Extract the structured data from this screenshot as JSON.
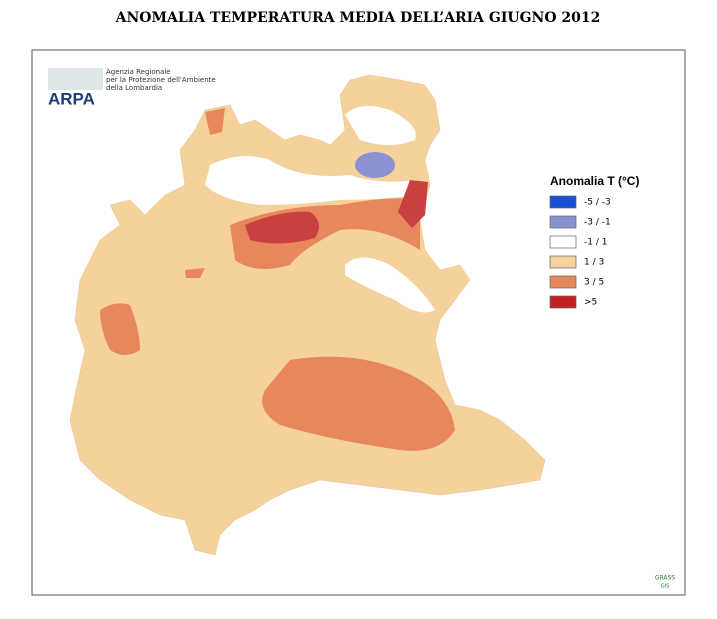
{
  "title": "ANOMALIA TEMPERATURA MEDIA DELL’ARIA GIUGNO 2012",
  "logo": {
    "name": "ARPA",
    "lines": [
      "Agenzia Regionale",
      "per la Protezione dell'Ambiente",
      "della Lombardia"
    ]
  },
  "legend": {
    "title": "Anomalia T (°C)",
    "items": [
      {
        "label": "-5 / -3",
        "color": "#1a4fd6"
      },
      {
        "label": "-3 / -1",
        "color": "#8a93d0"
      },
      {
        "label": "-1 / 1",
        "color": "#ffffff"
      },
      {
        "label": "1 / 3",
        "color": "#f5d29c"
      },
      {
        "label": "3 / 5",
        "color": "#e8875c"
      },
      {
        "label": ">5",
        "color": "#c42222"
      }
    ]
  },
  "credit": {
    "name": "GRASS",
    "sub": "GIS"
  }
}
